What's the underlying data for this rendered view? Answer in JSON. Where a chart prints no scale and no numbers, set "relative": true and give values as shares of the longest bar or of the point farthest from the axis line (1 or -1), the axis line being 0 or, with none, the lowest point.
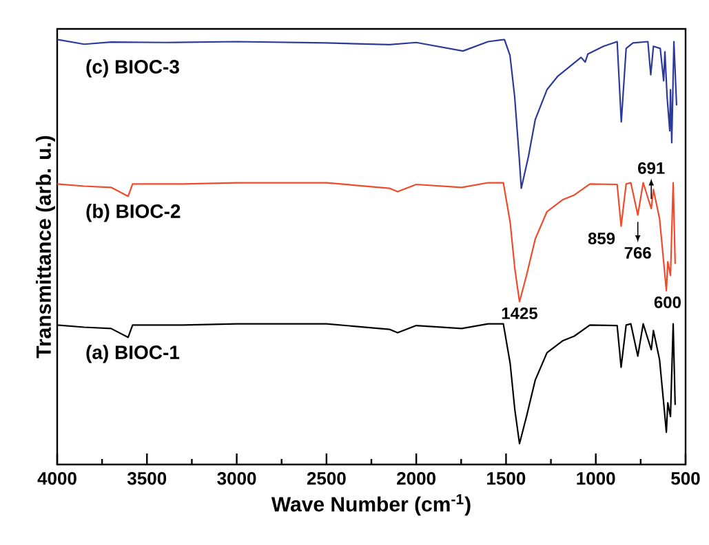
{
  "chart_data": {
    "type": "line",
    "relative": true,
    "xlabel": "Wave Number (cm$^{-1}$)",
    "ylabel": "Transmittance (arb. u.)",
    "xlim": [
      4000,
      500
    ],
    "xticks": [
      4000,
      {
        "value": 3750,
        "label": null
      },
      3500,
      {
        "value": 3250,
        "label": null
      },
      3000,
      {
        "value": 2750,
        "label": null
      },
      2500,
      {
        "value": 2250,
        "label": null
      },
      2000,
      {
        "value": 1750,
        "label": null
      },
      1500,
      {
        "value": 1250,
        "label": null
      },
      1000,
      {
        "value": 750,
        "label": null
      },
      500
    ],
    "series": [
      {
        "name": "(c) BIOC-3",
        "color": "#2b3a9a",
        "x": [
          4000,
          3850,
          3700,
          3400,
          3000,
          2500,
          2150,
          2000,
          1740,
          1600,
          1509,
          1478,
          1452,
          1428,
          1415,
          1375,
          1337,
          1272,
          1211,
          1082,
          1059,
          1044,
          957,
          881,
          858,
          831,
          793,
          710,
          694,
          679,
          641,
          622,
          615,
          603,
          588,
          584,
          577,
          565,
          550
        ],
        "values": [
          1.0,
          0.989,
          0.994,
          0.993,
          0.995,
          0.992,
          0.988,
          0.993,
          0.973,
          0.995,
          1.0,
          0.963,
          0.866,
          0.731,
          0.65,
          0.725,
          0.812,
          0.882,
          0.914,
          0.958,
          0.947,
          0.966,
          0.984,
          0.995,
          0.806,
          0.979,
          0.992,
          0.995,
          0.917,
          0.984,
          0.979,
          0.903,
          0.971,
          0.866,
          0.785,
          0.882,
          0.757,
          0.995,
          0.845
        ]
      },
      {
        "name": "(b) BIOC-2",
        "color": "#f04a2a",
        "x": [
          4000,
          3850,
          3700,
          3605,
          3580,
          3300,
          3000,
          2500,
          2150,
          2104,
          2000,
          1747,
          1600,
          1515,
          1477,
          1451,
          1425,
          1386,
          1337,
          1272,
          1185,
          1120,
          1033,
          881,
          859,
          831,
          805,
          766,
          736,
          691,
          679,
          645,
          622,
          607,
          599,
          584,
          569,
          558
        ],
        "values": [
          0.66,
          0.655,
          0.652,
          0.631,
          0.66,
          0.66,
          0.663,
          0.663,
          0.65,
          0.642,
          0.659,
          0.652,
          0.663,
          0.663,
          0.57,
          0.461,
          0.383,
          0.445,
          0.531,
          0.595,
          0.623,
          0.634,
          0.66,
          0.659,
          0.561,
          0.66,
          0.663,
          0.587,
          0.663,
          0.602,
          0.647,
          0.579,
          0.477,
          0.409,
          0.477,
          0.445,
          0.663,
          0.472
        ]
      },
      {
        "name": "(a) BIOC-1",
        "color": "#000000",
        "x": [
          4000,
          3850,
          3700,
          3605,
          3580,
          3300,
          3000,
          2500,
          2150,
          2104,
          2000,
          1747,
          1600,
          1515,
          1477,
          1451,
          1425,
          1386,
          1337,
          1272,
          1185,
          1120,
          1033,
          881,
          859,
          831,
          805,
          766,
          736,
          691,
          679,
          645,
          622,
          607,
          599,
          584,
          569,
          558
        ],
        "values": [
          0.328,
          0.323,
          0.32,
          0.299,
          0.328,
          0.328,
          0.331,
          0.331,
          0.318,
          0.31,
          0.327,
          0.32,
          0.331,
          0.331,
          0.238,
          0.129,
          0.049,
          0.113,
          0.199,
          0.263,
          0.291,
          0.302,
          0.328,
          0.327,
          0.229,
          0.328,
          0.331,
          0.255,
          0.331,
          0.27,
          0.315,
          0.247,
          0.145,
          0.076,
          0.145,
          0.113,
          0.331,
          0.14
        ]
      }
    ],
    "annotations": [
      {
        "text": "1425",
        "x": 1425,
        "y": 0.383
      },
      {
        "text": "859",
        "x": 859,
        "y": 0.561
      },
      {
        "text": "766",
        "x": 766,
        "y": 0.587
      },
      {
        "text": "691",
        "x": 691,
        "y": 0.602
      },
      {
        "text": "600",
        "x": 600,
        "y": 0.409
      }
    ]
  }
}
